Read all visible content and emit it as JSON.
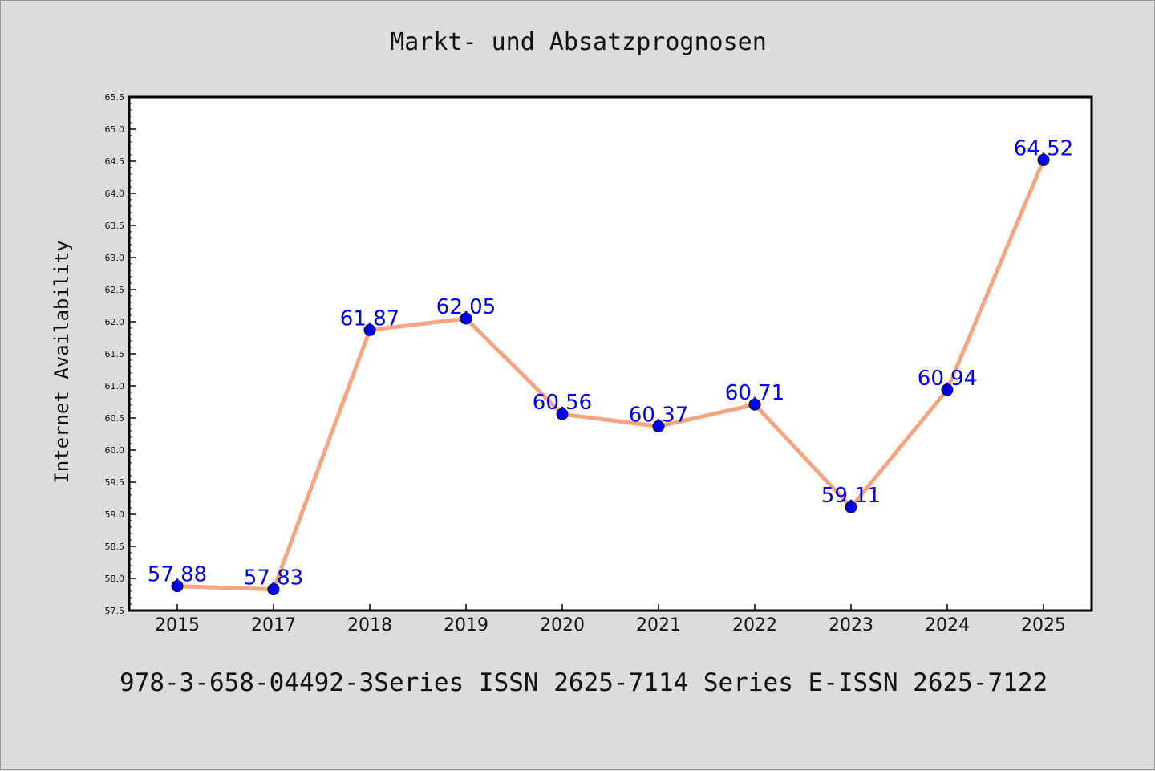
{
  "chart_data": {
    "type": "line",
    "title": "Markt- und Absatzprognosen",
    "xlabel": "",
    "ylabel": "Internet Availability",
    "categories": [
      "2015",
      "2017",
      "2018",
      "2019",
      "2020",
      "2021",
      "2022",
      "2023",
      "2024",
      "2025"
    ],
    "series": [
      {
        "values": [
          57.88,
          57.83,
          61.87,
          62.05,
          60.56,
          60.37,
          60.71,
          59.11,
          60.94,
          64.52
        ]
      }
    ],
    "data_labels": [
      "57.88",
      "57.83",
      "61.87",
      "62.05",
      "60.56",
      "60.37",
      "60.71",
      "59.11",
      "60.94",
      "64.52"
    ],
    "ylim": [
      57.5,
      65.5
    ],
    "yticks": [
      "57.5",
      "58.0",
      "58.5",
      "59.0",
      "59.5",
      "60.0",
      "60.5",
      "61.0",
      "61.5",
      "62.0",
      "62.5",
      "63.0",
      "63.5",
      "64.0",
      "64.5",
      "65.0",
      "65.5"
    ],
    "grid": false,
    "colors": {
      "line": "#f4a582",
      "marker": "#0000ee",
      "label": "#0000ee",
      "background": "#dcdcdc",
      "plot_area": "#ffffff"
    }
  },
  "footer": "978-3-658-04492-3Series ISSN 2625-7114 Series E-ISSN 2625-7122"
}
